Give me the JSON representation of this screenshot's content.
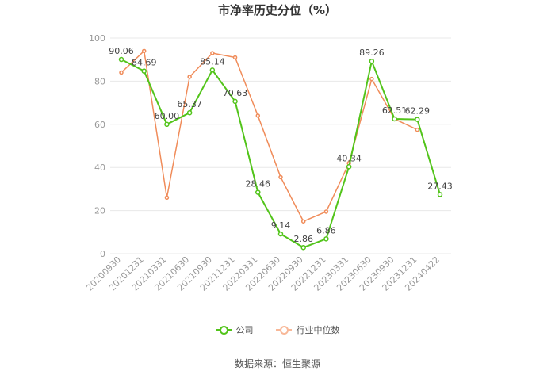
{
  "chart_data": {
    "type": "line",
    "title": "市净率历史分位（%）",
    "categories": [
      "20200930",
      "20201231",
      "20210331",
      "20210630",
      "20210930",
      "20211231",
      "20220331",
      "20220630",
      "20220930",
      "20221231",
      "20230331",
      "20230630",
      "20230930",
      "20231231",
      "20240422"
    ],
    "ylim": [
      0,
      100
    ],
    "yticks": [
      0,
      20,
      40,
      60,
      80,
      100
    ],
    "grid": true,
    "legend_position": "bottom",
    "series": [
      {
        "name": "公司",
        "color": "#52c41a",
        "values": [
          90.06,
          84.69,
          60.0,
          65.37,
          85.14,
          70.63,
          28.46,
          9.14,
          2.86,
          6.86,
          40.34,
          89.26,
          62.51,
          62.29,
          27.43
        ],
        "labels": [
          "90.06",
          "84.69",
          "60.00",
          "65.37",
          "85.14",
          "70.63",
          "28.46",
          "9.14",
          "2.86",
          "6.86",
          "40.34",
          "89.26",
          "62.51",
          "62.29",
          "27.43"
        ]
      },
      {
        "name": "行业中位数",
        "color": "#f08c5a",
        "values": [
          84,
          94,
          26,
          82,
          93,
          91,
          64,
          35.5,
          15,
          19.5,
          42,
          81,
          62.5,
          57.5,
          null
        ]
      }
    ],
    "source": "数据来源：恒生聚源"
  }
}
